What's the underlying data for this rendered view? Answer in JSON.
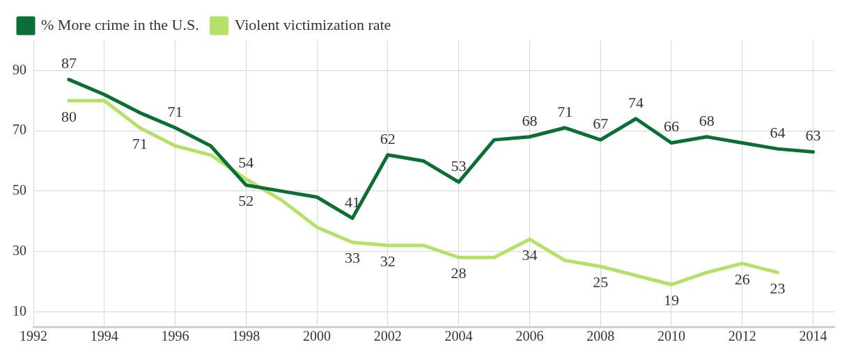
{
  "chart_data": {
    "type": "line",
    "x": [
      1993,
      1994,
      1995,
      1996,
      1997,
      1998,
      1999,
      2000,
      2001,
      2002,
      2003,
      2004,
      2005,
      2006,
      2007,
      2008,
      2009,
      2010,
      2011,
      2012,
      2013,
      2014
    ],
    "series": [
      {
        "name": "% More crime in the U.S.",
        "color": "#0b6e35",
        "values": [
          87,
          82,
          76,
          71,
          65,
          52,
          50,
          48,
          41,
          62,
          60,
          53,
          67,
          68,
          71,
          67,
          74,
          66,
          68,
          66,
          64,
          63
        ],
        "value_labels": [
          "87",
          null,
          null,
          "71",
          null,
          "52",
          null,
          null,
          "41",
          "62",
          null,
          "53",
          null,
          "68",
          "71",
          "67",
          "74",
          "66",
          "68",
          null,
          "64",
          "63"
        ]
      },
      {
        "name": "Violent victimization rate",
        "color": "#b5e06a",
        "values": [
          80,
          80,
          71,
          65,
          62,
          54,
          47,
          38,
          33,
          32,
          32,
          28,
          28,
          34,
          27,
          25,
          22,
          19,
          23,
          26,
          23,
          null
        ],
        "value_labels": [
          "80",
          null,
          "71",
          null,
          null,
          "54",
          null,
          null,
          "33",
          "32",
          null,
          "28",
          null,
          "34",
          null,
          "25",
          null,
          "19",
          null,
          "26",
          "23",
          null
        ]
      }
    ],
    "xlim": [
      1992,
      2014.6
    ],
    "xticks": [
      1992,
      1994,
      1996,
      1998,
      2000,
      2002,
      2004,
      2006,
      2008,
      2010,
      2012,
      2014
    ],
    "ylim": [
      5,
      100
    ],
    "yticks": [
      10,
      30,
      50,
      70,
      90
    ],
    "grid": true,
    "legend": "top left",
    "marker": "none",
    "line_style": "solid"
  }
}
